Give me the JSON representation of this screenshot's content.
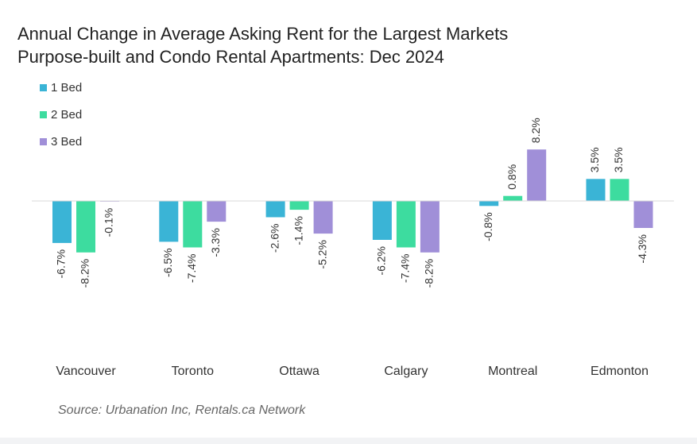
{
  "chart_data": {
    "type": "bar",
    "title": "Annual Change in Average Asking Rent for the Largest Markets",
    "subtitle": "Purpose-built and Condo Rental Apartments: Dec 2024",
    "categories": [
      "Vancouver",
      "Toronto",
      "Ottawa",
      "Calgary",
      "Montreal",
      "Edmonton"
    ],
    "series": [
      {
        "name": "1 Bed",
        "color": "#3ab4d6",
        "values": [
          -6.7,
          -6.5,
          -2.6,
          -6.2,
          -0.8,
          3.5
        ],
        "labels": [
          "-6.7%",
          "-6.5%",
          "-2.6%",
          "-6.2%",
          "-0.8%",
          "3.5%"
        ]
      },
      {
        "name": "2 Bed",
        "color": "#3ddc9f",
        "values": [
          -8.2,
          -7.4,
          -1.4,
          -7.4,
          0.8,
          3.5
        ],
        "labels": [
          "-8.2%",
          "-7.4%",
          "-1.4%",
          "-7.4%",
          "0.8%",
          "3.5%"
        ]
      },
      {
        "name": "3 Bed",
        "color": "#a08fd8",
        "values": [
          -0.1,
          -3.3,
          -5.2,
          -8.2,
          8.2,
          -4.3
        ],
        "labels": [
          "-0.1%",
          "-3.3%",
          "-5.2%",
          "-8.2%",
          "8.2%",
          "-4.3%"
        ]
      }
    ],
    "xlabel": "",
    "ylabel": "",
    "ylim": [
      -8.2,
      8.2
    ],
    "grid": false,
    "legend_position": "top-left",
    "source": "Source: Urbanation Inc, Rentals.ca Network"
  }
}
